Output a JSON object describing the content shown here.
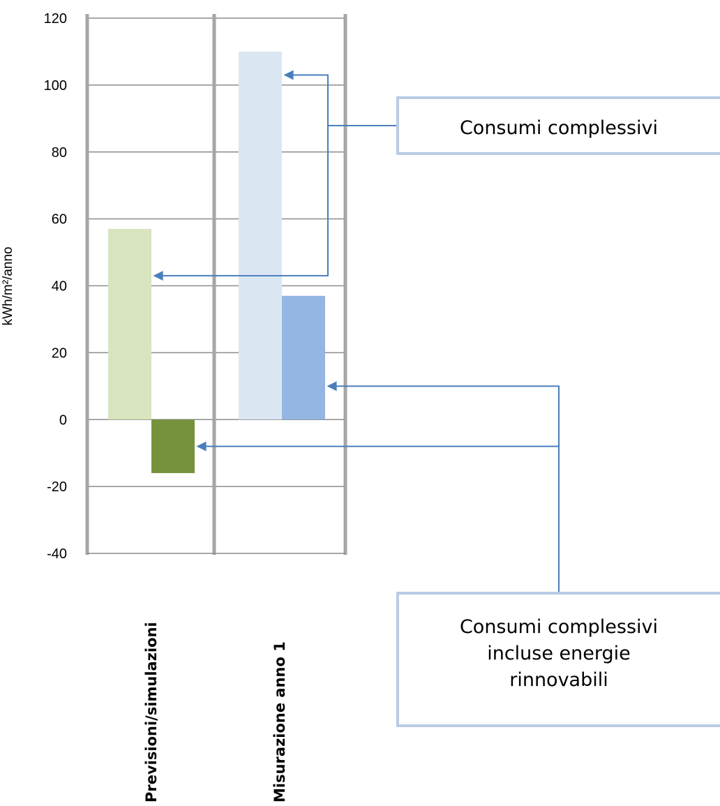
{
  "chart_data": {
    "type": "bar",
    "categories": [
      "Previsioni/simulazioni",
      "Misurazione anno 1"
    ],
    "series": [
      {
        "values": [
          57,
          110
        ],
        "colors": [
          "#d7e4bd",
          "#dbe6f3"
        ]
      },
      {
        "values": [
          -16,
          37
        ],
        "colors": [
          "#76923c",
          "#95b6e2"
        ]
      }
    ],
    "ylabel": "kWh/m²/anno",
    "ylim": [
      -40,
      120
    ],
    "yticks": [
      120,
      100,
      80,
      60,
      40,
      20,
      0,
      -20,
      -40
    ],
    "grid": true,
    "annotations": [
      {
        "lines": [
          "Consumi complessivi"
        ],
        "points_to": [
          {
            "category": 1,
            "series": 0,
            "y": 103
          },
          {
            "category": 0,
            "series": 0,
            "y": 43
          }
        ]
      },
      {
        "lines": [
          "Consumi complessivi",
          "incluse energie",
          "rinnovabili"
        ],
        "points_to": [
          {
            "category": 1,
            "series": 1,
            "y": 10
          },
          {
            "category": 0,
            "series": 1,
            "y": -8
          }
        ]
      }
    ]
  }
}
